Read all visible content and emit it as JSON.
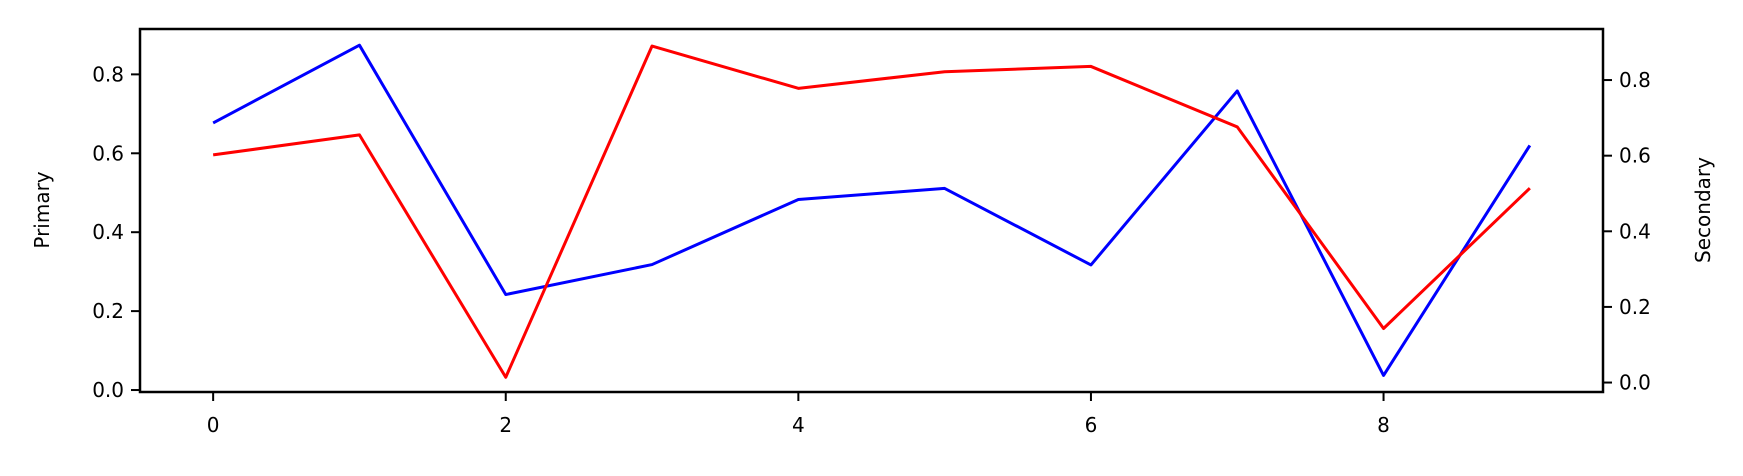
{
  "chart_data": {
    "type": "line",
    "title": "",
    "x": [
      0,
      1,
      2,
      3,
      4,
      5,
      6,
      7,
      8,
      9
    ],
    "xlim": [
      -0.5,
      9.5
    ],
    "x_ticks": [
      0,
      2,
      4,
      6,
      8
    ],
    "ylabel_left": "Primary",
    "ylabel_right": "Secondary",
    "ylim_left": [
      -0.005,
      0.915
    ],
    "ylim_right": [
      -0.025,
      0.935
    ],
    "y_ticks_left": [
      "0.0",
      "0.2",
      "0.4",
      "0.6",
      "0.8"
    ],
    "y_ticks_right": [
      "0.0",
      "0.2",
      "0.4",
      "0.6",
      "0.8"
    ],
    "grid": false,
    "legend": "none",
    "series": [
      {
        "axis": "left",
        "color": "#0000ff",
        "values": [
          0.677,
          0.874,
          0.242,
          0.318,
          0.483,
          0.511,
          0.317,
          0.758,
          0.037,
          0.62
        ]
      },
      {
        "axis": "right",
        "color": "#ff0000",
        "values": [
          0.602,
          0.655,
          0.014,
          0.89,
          0.778,
          0.822,
          0.836,
          0.676,
          0.143,
          0.514
        ]
      }
    ]
  }
}
